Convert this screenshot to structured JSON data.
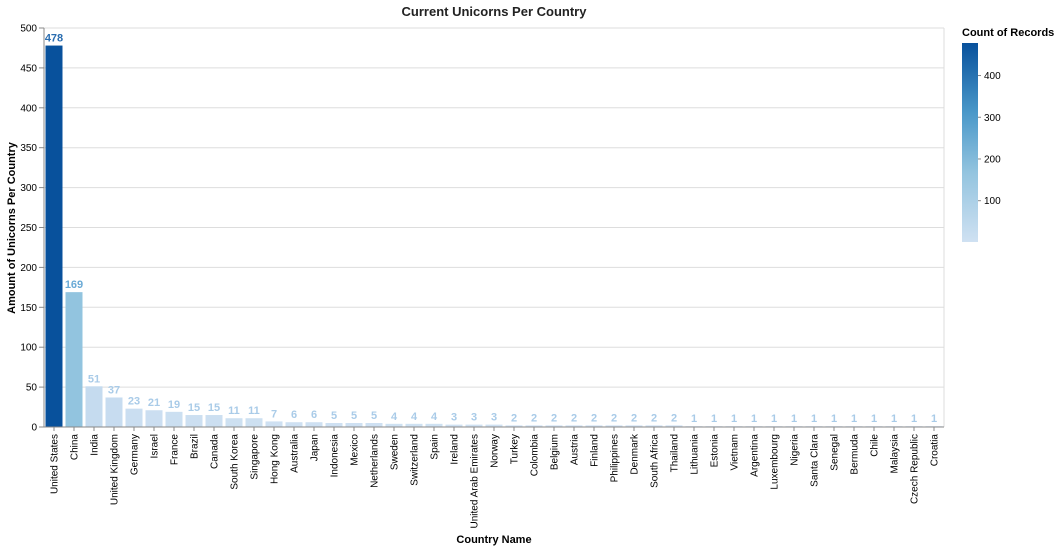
{
  "chart_data": {
    "type": "bar",
    "title": "Current Unicorns Per Country",
    "xlabel": "Country Name",
    "ylabel": "Amount of Unicorns Per Country",
    "ylim": [
      0,
      500
    ],
    "yticks": [
      0,
      50,
      100,
      150,
      200,
      250,
      300,
      350,
      400,
      450,
      500
    ],
    "grid": true,
    "categories": [
      "United States",
      "China",
      "India",
      "United Kingdom",
      "Germany",
      "Israel",
      "France",
      "Brazil",
      "Canada",
      "South Korea",
      "Singapore",
      "Hong Kong",
      "Australia",
      "Japan",
      "Indonesia",
      "Mexico",
      "Netherlands",
      "Sweden",
      "Switzerland",
      "Spain",
      "Ireland",
      "United Arab Emirates",
      "Norway",
      "Turkey",
      "Colombia",
      "Belgium",
      "Austria",
      "Finland",
      "Philippines",
      "Denmark",
      "South Africa",
      "Thailand",
      "Lithuania",
      "Estonia",
      "Vietnam",
      "Argentina",
      "Luxembourg",
      "Nigeria",
      "Santa Clara",
      "Senegal",
      "Bermuda",
      "Chile",
      "Malaysia",
      "Czech Republic",
      "Croatia"
    ],
    "values": [
      478,
      169,
      51,
      37,
      23,
      21,
      19,
      15,
      15,
      11,
      11,
      7,
      6,
      6,
      5,
      5,
      5,
      4,
      4,
      4,
      3,
      3,
      3,
      2,
      2,
      2,
      2,
      2,
      2,
      2,
      2,
      2,
      1,
      1,
      1,
      1,
      1,
      1,
      1,
      1,
      1,
      1,
      1,
      1,
      1
    ],
    "legend": {
      "title": "Count of Records",
      "placement": "top-right",
      "ticks": [
        100,
        200,
        300,
        400
      ],
      "domain": [
        1,
        478
      ],
      "color_low": "#cfe1f2",
      "color_high": "#08519c"
    }
  }
}
